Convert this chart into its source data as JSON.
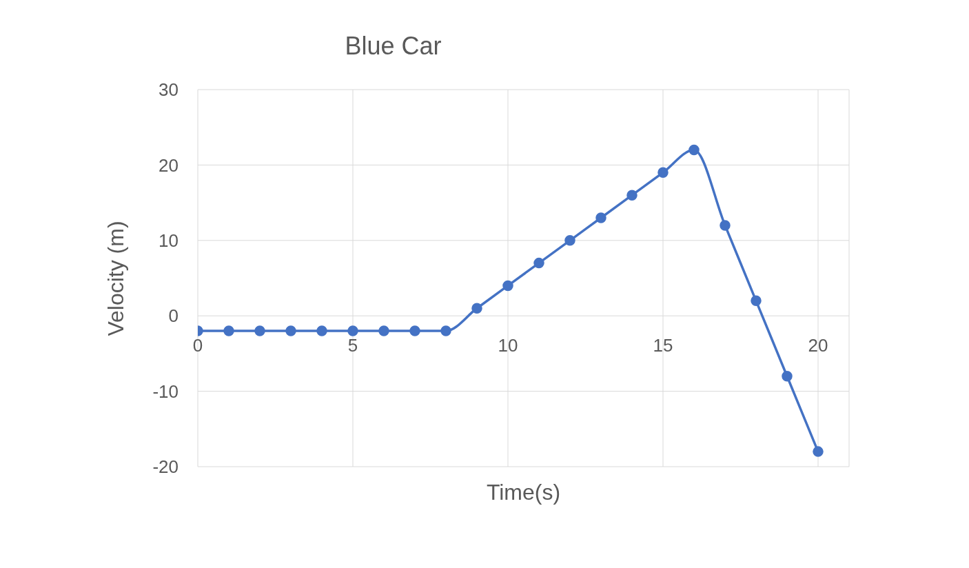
{
  "chart_data": {
    "type": "line",
    "title": "Blue Car",
    "xlabel": "Time(s)",
    "ylabel": "Velocity (m)",
    "x": [
      0,
      1,
      2,
      3,
      4,
      5,
      6,
      7,
      8,
      9,
      10,
      11,
      12,
      13,
      14,
      15,
      16,
      17,
      18,
      19,
      20
    ],
    "series": [
      {
        "color": "#4472c4",
        "values": [
          -2,
          -2,
          -2,
          -2,
          -2,
          -2,
          -2,
          -2,
          -2,
          1,
          4,
          7,
          10,
          13,
          16,
          19,
          22,
          12,
          2,
          -8,
          -18
        ]
      }
    ],
    "xlim": [
      0,
      21
    ],
    "xticks": [
      0,
      5,
      10,
      15,
      20
    ],
    "ylim": [
      -20,
      30
    ],
    "yticks": [
      -20,
      -10,
      0,
      10,
      20,
      30
    ],
    "grid": true,
    "marker": "circle",
    "legend": false
  }
}
